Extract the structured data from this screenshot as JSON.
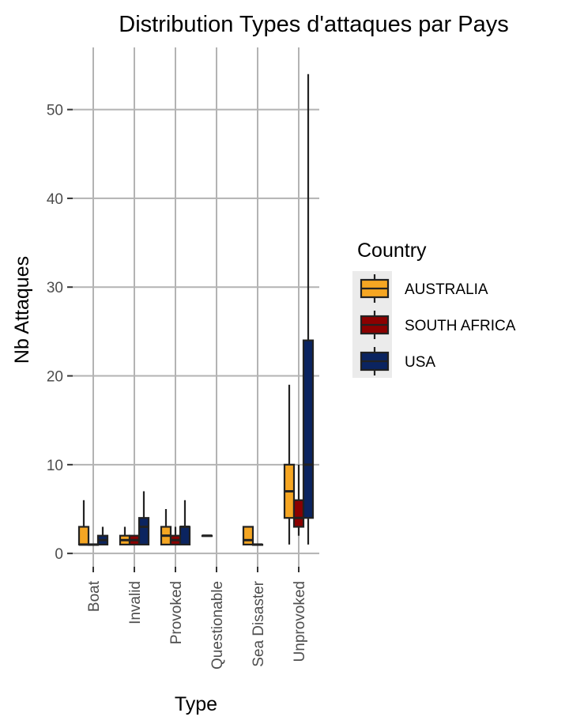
{
  "chart_data": {
    "type": "boxplot",
    "title": "Distribution Types d'attaques par Pays",
    "xlabel": "Type",
    "ylabel": "Nb Attaques",
    "categories": [
      "Boat",
      "Invalid",
      "Provoked",
      "Questionable",
      "Sea Disaster",
      "Unprovoked"
    ],
    "y_ticks": [
      0,
      10,
      20,
      30,
      40,
      50
    ],
    "ylim": [
      -1.5,
      57
    ],
    "grid": true,
    "legend": {
      "title": "Country",
      "position": "right"
    },
    "series": [
      {
        "name": "AUSTRALIA",
        "color": "#F5A623",
        "boxes": {
          "Boat": {
            "min": 1,
            "q1": 1,
            "median": 1,
            "q3": 3,
            "max": 6
          },
          "Invalid": {
            "min": 1,
            "q1": 1,
            "median": 1.5,
            "q3": 2,
            "max": 3
          },
          "Provoked": {
            "min": 1,
            "q1": 1,
            "median": 2,
            "q3": 3,
            "max": 5
          },
          "Questionable": {
            "min": 2,
            "q1": 2,
            "median": 2,
            "q3": 2,
            "max": 2
          },
          "Sea Disaster": {
            "min": 1,
            "q1": 1,
            "median": 1.5,
            "q3": 3,
            "max": 3
          },
          "Unprovoked": {
            "min": 1,
            "q1": 4,
            "median": 7,
            "q3": 10,
            "max": 19
          }
        }
      },
      {
        "name": "SOUTH AFRICA",
        "color": "#8B0000",
        "boxes": {
          "Boat": {
            "min": 1,
            "q1": 1,
            "median": 1,
            "q3": 1,
            "max": 1
          },
          "Invalid": {
            "min": 1,
            "q1": 1,
            "median": 1.5,
            "q3": 2,
            "max": 2
          },
          "Provoked": {
            "min": 1,
            "q1": 1,
            "median": 1.5,
            "q3": 2,
            "max": 3
          },
          "Sea Disaster": {
            "min": 1,
            "q1": 1,
            "median": 1,
            "q3": 1,
            "max": 1
          },
          "Unprovoked": {
            "min": 2,
            "q1": 3,
            "median": 4,
            "q3": 6,
            "max": 10
          }
        }
      },
      {
        "name": "USA",
        "color": "#0B2460",
        "boxes": {
          "Boat": {
            "min": 1,
            "q1": 1,
            "median": 1.5,
            "q3": 2,
            "max": 3
          },
          "Invalid": {
            "min": 1,
            "q1": 1,
            "median": 3,
            "q3": 4,
            "max": 7
          },
          "Provoked": {
            "min": 1,
            "q1": 1,
            "median": 3,
            "q3": 3,
            "max": 6
          },
          "Unprovoked": {
            "min": 1,
            "q1": 4,
            "median": 10,
            "q3": 24,
            "max": 54
          }
        }
      }
    ]
  }
}
